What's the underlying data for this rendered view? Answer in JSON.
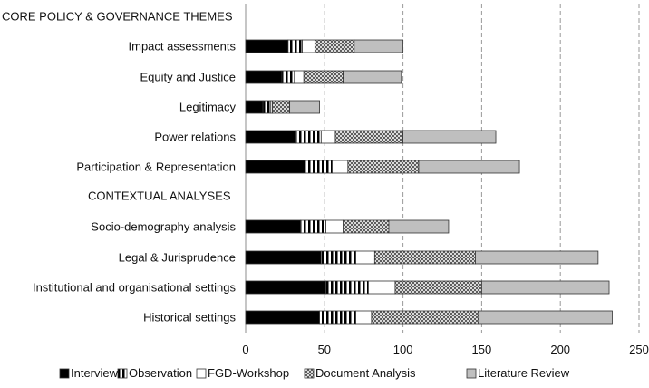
{
  "chart_data": {
    "type": "bar",
    "orientation": "horizontal",
    "stacked": true,
    "xlim": [
      0,
      250
    ],
    "x_ticks": [
      0,
      50,
      100,
      150,
      200,
      250
    ],
    "grid": "vertical-dashed",
    "legend_position": "bottom",
    "group_headings": [
      {
        "label": "CORE POLICY & GOVERNANCE THEMES",
        "before": 0
      },
      {
        "label": "CONTEXTUAL ANALYSES",
        "before": 5
      }
    ],
    "categories": [
      "Impact assessments",
      "Equity and Justice",
      "Legitimacy",
      "Power relations",
      "Participation & Representation",
      "Socio-demography analysis",
      "Legal & Jurisprudence",
      "Institutional and organisational settings",
      "Historical settings"
    ],
    "series": [
      {
        "name": "Interview",
        "pattern": "solid-black",
        "values": [
          27,
          23,
          11,
          32,
          38,
          35,
          48,
          51,
          47
        ]
      },
      {
        "name": "Observation",
        "pattern": "vertical-stripes",
        "values": [
          9,
          8,
          5,
          16,
          17,
          16,
          22,
          27,
          23
        ]
      },
      {
        "name": "FGD-Workshop",
        "pattern": "white",
        "values": [
          8,
          6,
          1,
          9,
          10,
          11,
          12,
          17,
          10
        ]
      },
      {
        "name": "Document Analysis",
        "pattern": "crosshatch",
        "values": [
          25,
          25,
          11,
          43,
          45,
          29,
          64,
          55,
          68
        ]
      },
      {
        "name": "Literature Review",
        "pattern": "grey",
        "values": [
          31,
          37,
          19,
          59,
          64,
          38,
          78,
          81,
          85
        ]
      }
    ]
  }
}
